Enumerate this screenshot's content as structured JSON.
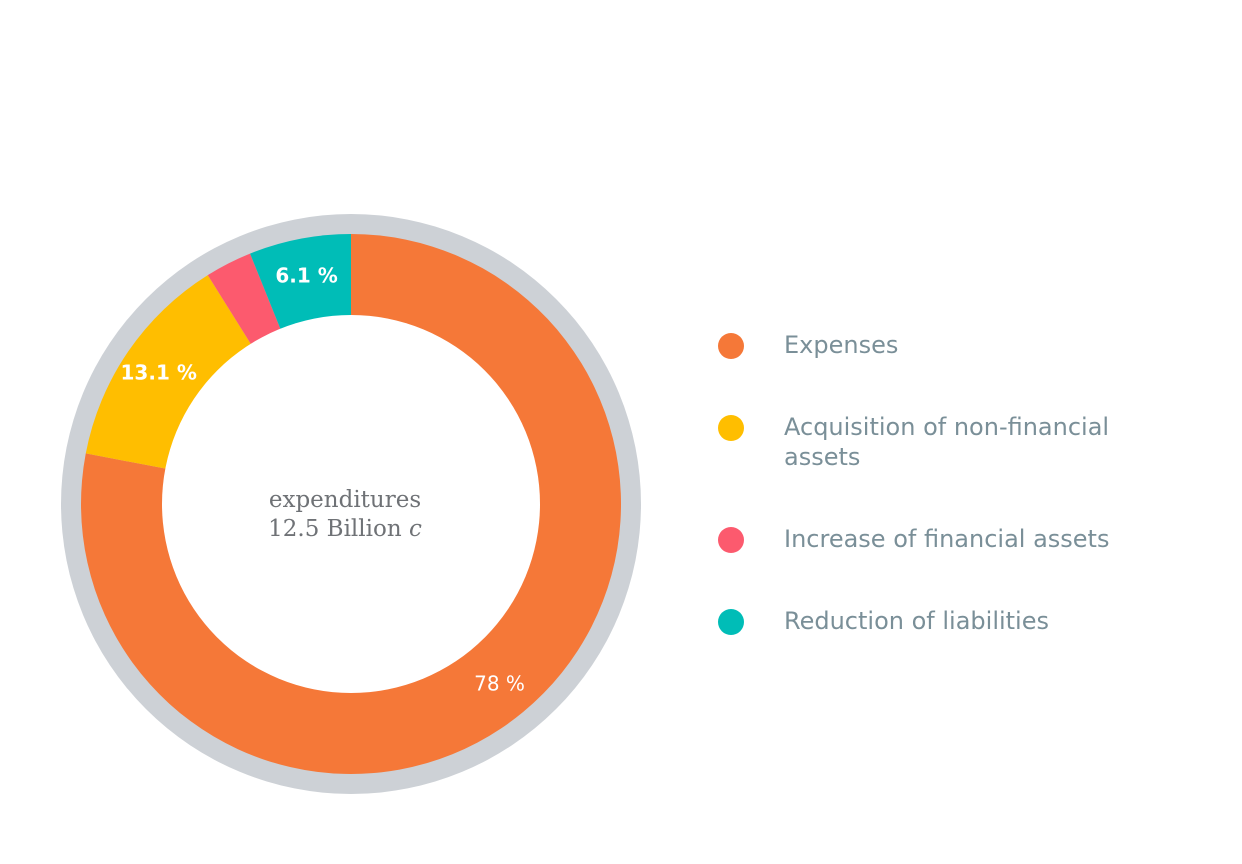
{
  "chart_data": {
    "type": "pie",
    "variant": "donut",
    "center_label": {
      "line1": "expenditures",
      "line2_value": "12.5 Billion",
      "line2_unit": "c"
    },
    "categories": [
      "Expenses",
      "Acquisition of non-financial assets",
      "Increase of financial assets",
      "Reduction of liabilities"
    ],
    "values": [
      78,
      13.1,
      2.8,
      6.1
    ],
    "data_labels": [
      "78 %",
      "13.1 %",
      "",
      "6.1 %"
    ],
    "colors": [
      "#f57838",
      "#ffbe00",
      "#fc5a6e",
      "#00bdb7"
    ],
    "ring_color": "#cdd1d6",
    "legend_placement": "right"
  }
}
